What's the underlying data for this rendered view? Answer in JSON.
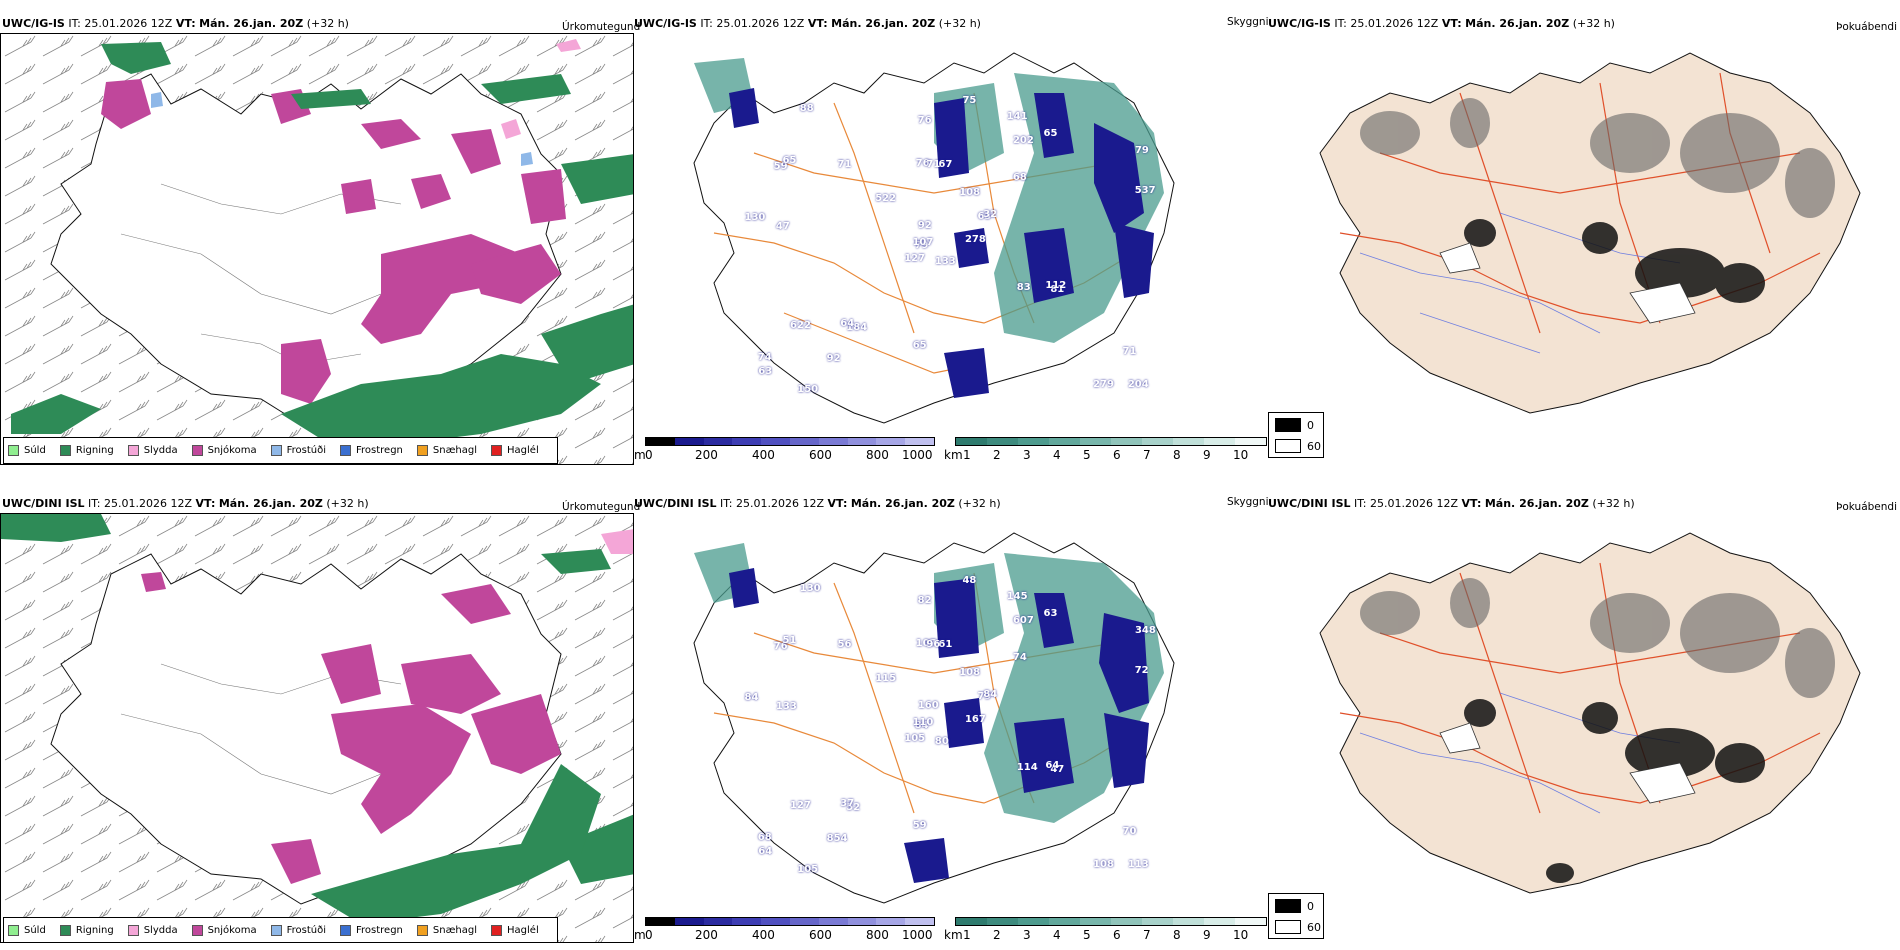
{
  "rows": [
    {
      "model": "UWC/IG-IS",
      "it_label": "IT:",
      "it_value": "25.01.2026 12Z",
      "vt_label": "VT:",
      "vt_value": "Mán. 26.jan. 20Z",
      "lead": "(+32 h)"
    },
    {
      "model": "UWC/DINI ISL",
      "it_label": "IT:",
      "it_value": "25.01.2026 12Z",
      "vt_label": "VT:",
      "vt_value": "Mán. 26.jan. 20Z",
      "lead": "(+32 h)"
    }
  ],
  "panel_titles": {
    "precip": "Úrkomutegund",
    "visibility": "Skyggni",
    "fog": "Þokuábendi"
  },
  "precip_legend": [
    {
      "label": "Súld",
      "color": "#90ee90"
    },
    {
      "label": "Rigning",
      "color": "#2e8b57"
    },
    {
      "label": "Slydda",
      "color": "#f4a6d7"
    },
    {
      "label": "Snjókoma",
      "color": "#c0479b"
    },
    {
      "label": "Frostúði",
      "color": "#8fb8e8"
    },
    {
      "label": "Frostregn",
      "color": "#3a6fd0"
    },
    {
      "label": "Snæhagl",
      "color": "#f0a020"
    },
    {
      "label": "Haglél",
      "color": "#e02020"
    }
  ],
  "colorbar_m": {
    "unit": "m",
    "ticks": [
      "0",
      "200",
      "400",
      "600",
      "800",
      "1000"
    ]
  },
  "colorbar_km": {
    "unit": "km",
    "ticks": [
      "1",
      "2",
      "3",
      "4",
      "5",
      "6",
      "7",
      "8",
      "9",
      "10"
    ]
  },
  "fog_legend": [
    {
      "label": "0",
      "color": "#000000"
    },
    {
      "label": "60",
      "color": "#ffffff"
    }
  ],
  "vis_labels_top": [
    "133",
    "59",
    "79",
    "74",
    "63",
    "184",
    "141",
    "67",
    "202",
    "278",
    "88",
    "204",
    "47",
    "79",
    "127",
    "68",
    "150",
    "76",
    "108",
    "622",
    "522",
    "63",
    "92",
    "71",
    "32",
    "81",
    "65",
    "76",
    "130",
    "83",
    "537",
    "107",
    "65",
    "92",
    "71",
    "65",
    "64",
    "279",
    "71",
    "112",
    "75"
  ],
  "vis_labels_bottom": [
    "80",
    "76",
    "84",
    "68",
    "79",
    "52",
    "145",
    "61",
    "607",
    "167",
    "130",
    "113",
    "133",
    "348",
    "105",
    "74",
    "105",
    "107",
    "108",
    "127",
    "115",
    "64",
    "854",
    "96",
    "84",
    "47",
    "51",
    "82",
    "84",
    "114",
    "72",
    "110",
    "59",
    "160",
    "56",
    "63",
    "37",
    "108",
    "70",
    "64",
    "48"
  ]
}
